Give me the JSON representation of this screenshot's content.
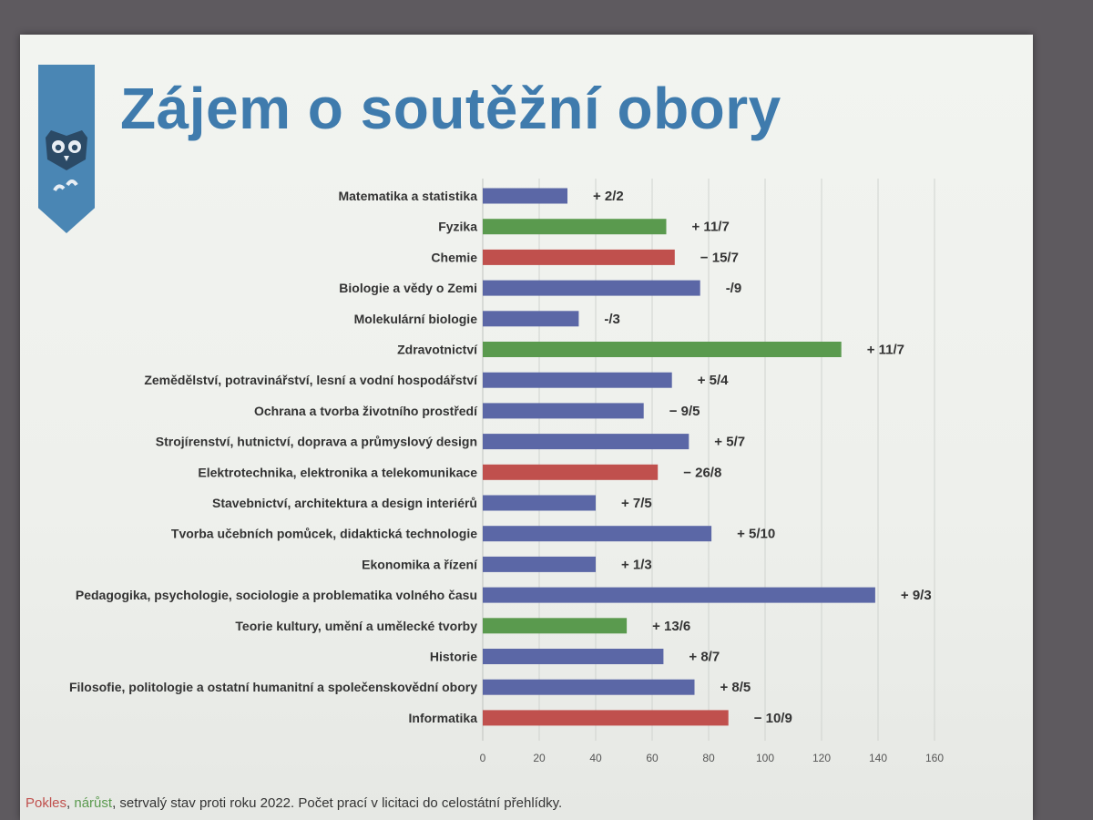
{
  "slide": {
    "title": "Zájem o soutěžní obory",
    "footer_legend": {
      "decrease": "Pokles",
      "increase": "nárůst",
      "steady": "setrvalý stav proti roku 2022.",
      "note": "Počet prací v licitaci do celostátní přehlídky."
    }
  },
  "logo": {
    "icon": "owl-icon"
  },
  "colors": {
    "steady": "#5b67a6",
    "increase": "#5a9a4e",
    "decrease": "#c0504d",
    "accent": "#3f7bad"
  },
  "chart_data": {
    "type": "bar",
    "orientation": "horizontal",
    "xlim": [
      0,
      160
    ],
    "xticks": [
      "0",
      "20",
      "40",
      "60",
      "80",
      "100",
      "120",
      "140",
      "160"
    ],
    "grid": "vertical",
    "categories": [
      "Matematika a statistika",
      "Fyzika",
      "Chemie",
      "Biologie a vědy o Zemi",
      "Molekulární biologie",
      "Zdravotnictví",
      "Zemědělství, potravinářství, lesní a vodní hospodářství",
      "Ochrana a tvorba životního prostředí",
      "Strojírenství, hutnictví, doprava a průmyslový design",
      "Elektrotechnika, elektronika a telekomunikace",
      "Stavebnictví, architektura a design interiérů",
      "Tvorba učebních pomůcek, didaktická technologie",
      "Ekonomika a řízení",
      "Pedagogika, psychologie, sociologie a problematika volného času",
      "Teorie kultury, umění a umělecké tvorby",
      "Historie",
      "Filosofie, politologie a ostatní humanitní a společenskovědní obory",
      "Informatika"
    ],
    "values": [
      30,
      65,
      68,
      77,
      34,
      127,
      67,
      57,
      73,
      62,
      40,
      81,
      40,
      139,
      51,
      64,
      75,
      87
    ],
    "trend": [
      "steady",
      "increase",
      "decrease",
      "steady",
      "steady",
      "increase",
      "steady",
      "steady",
      "steady",
      "decrease",
      "steady",
      "steady",
      "steady",
      "steady",
      "increase",
      "steady",
      "steady",
      "decrease"
    ],
    "annotations": [
      "+ 2/2",
      "+ 11/7",
      "− 15/7",
      "-/9",
      "-/3",
      "+ 11/7",
      "+ 5/4",
      "− 9/5",
      "+ 5/7",
      "− 26/8",
      "+ 7/5",
      "+ 5/10",
      "+ 1/3",
      "+ 9/3",
      "+ 13/6",
      "+ 8/7",
      "+ 8/5",
      "− 10/9"
    ]
  }
}
